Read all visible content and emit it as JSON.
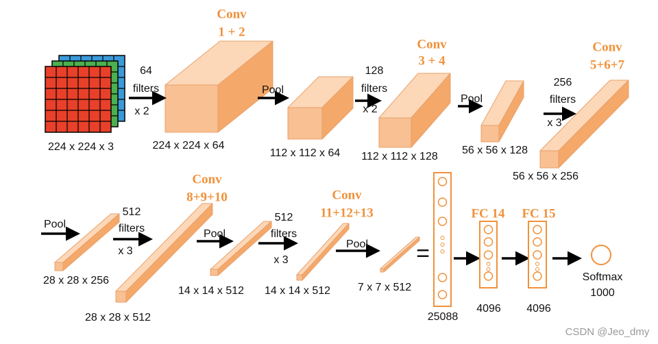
{
  "conv_labels": [
    {
      "title": "Conv",
      "layers": "1 + 2"
    },
    {
      "title": "Conv",
      "layers": "3 + 4"
    },
    {
      "title": "Conv",
      "layers": "5+6+7"
    },
    {
      "title": "Conv",
      "layers": "8+9+10"
    },
    {
      "title": "Conv",
      "layers": "11+12+13"
    }
  ],
  "filter_labels": [
    {
      "count": "64",
      "word": "filters",
      "times": "x 2"
    },
    {
      "count": "128",
      "word": "filters",
      "times": "x 2"
    },
    {
      "count": "256",
      "word": "filters",
      "times": "x 3"
    },
    {
      "count": "512",
      "word": "filters",
      "times": "x 3"
    },
    {
      "count": "512",
      "word": "filters",
      "times": "x 3"
    }
  ],
  "pool_labels": [
    "Pool",
    "Pool",
    "Pool",
    "Pool",
    "Pool"
  ],
  "dimensions": [
    "224 x 224 x 3",
    "224 x 224 x 64",
    "112 x 112 x 64",
    "112 x 112 x 128",
    "56 x 56 x 128",
    "56 x 56 x 256",
    "28 x 28 x 256",
    "28 x 28 x 512",
    "14 x 14 x 512",
    "14 x 14 x 512",
    "7 x 7 x 512",
    "25088",
    "4096",
    "4096"
  ],
  "equals": "=",
  "fc_labels": [
    "FC 14",
    "FC 15"
  ],
  "softmax": {
    "label": "Softmax",
    "size": "1000"
  },
  "watermark": "CSDN @Jeo_dmy"
}
